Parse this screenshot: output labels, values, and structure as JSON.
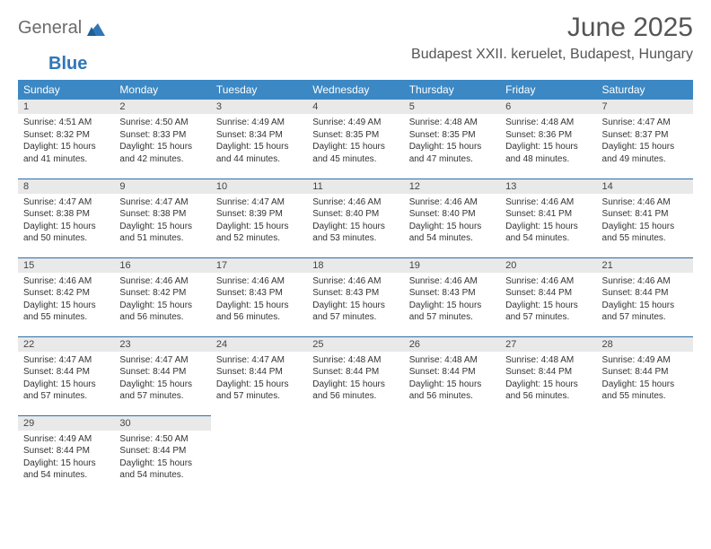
{
  "brand": {
    "general": "General",
    "blue": "Blue"
  },
  "header": {
    "month": "June 2025",
    "location": "Budapest XXII. keruelet, Budapest, Hungary"
  },
  "colors": {
    "header_bg": "#3b88c4",
    "header_text": "#ffffff",
    "daynum_bg": "#e9e9e9",
    "row_border": "#2f6fa8",
    "text": "#333333",
    "title": "#555555"
  },
  "weekdays": [
    "Sunday",
    "Monday",
    "Tuesday",
    "Wednesday",
    "Thursday",
    "Friday",
    "Saturday"
  ],
  "days": [
    {
      "n": 1,
      "sunrise": "4:51 AM",
      "sunset": "8:32 PM",
      "dh": 15,
      "dm": 41
    },
    {
      "n": 2,
      "sunrise": "4:50 AM",
      "sunset": "8:33 PM",
      "dh": 15,
      "dm": 42
    },
    {
      "n": 3,
      "sunrise": "4:49 AM",
      "sunset": "8:34 PM",
      "dh": 15,
      "dm": 44
    },
    {
      "n": 4,
      "sunrise": "4:49 AM",
      "sunset": "8:35 PM",
      "dh": 15,
      "dm": 45
    },
    {
      "n": 5,
      "sunrise": "4:48 AM",
      "sunset": "8:35 PM",
      "dh": 15,
      "dm": 47
    },
    {
      "n": 6,
      "sunrise": "4:48 AM",
      "sunset": "8:36 PM",
      "dh": 15,
      "dm": 48
    },
    {
      "n": 7,
      "sunrise": "4:47 AM",
      "sunset": "8:37 PM",
      "dh": 15,
      "dm": 49
    },
    {
      "n": 8,
      "sunrise": "4:47 AM",
      "sunset": "8:38 PM",
      "dh": 15,
      "dm": 50
    },
    {
      "n": 9,
      "sunrise": "4:47 AM",
      "sunset": "8:38 PM",
      "dh": 15,
      "dm": 51
    },
    {
      "n": 10,
      "sunrise": "4:47 AM",
      "sunset": "8:39 PM",
      "dh": 15,
      "dm": 52
    },
    {
      "n": 11,
      "sunrise": "4:46 AM",
      "sunset": "8:40 PM",
      "dh": 15,
      "dm": 53
    },
    {
      "n": 12,
      "sunrise": "4:46 AM",
      "sunset": "8:40 PM",
      "dh": 15,
      "dm": 54
    },
    {
      "n": 13,
      "sunrise": "4:46 AM",
      "sunset": "8:41 PM",
      "dh": 15,
      "dm": 54
    },
    {
      "n": 14,
      "sunrise": "4:46 AM",
      "sunset": "8:41 PM",
      "dh": 15,
      "dm": 55
    },
    {
      "n": 15,
      "sunrise": "4:46 AM",
      "sunset": "8:42 PM",
      "dh": 15,
      "dm": 55
    },
    {
      "n": 16,
      "sunrise": "4:46 AM",
      "sunset": "8:42 PM",
      "dh": 15,
      "dm": 56
    },
    {
      "n": 17,
      "sunrise": "4:46 AM",
      "sunset": "8:43 PM",
      "dh": 15,
      "dm": 56
    },
    {
      "n": 18,
      "sunrise": "4:46 AM",
      "sunset": "8:43 PM",
      "dh": 15,
      "dm": 57
    },
    {
      "n": 19,
      "sunrise": "4:46 AM",
      "sunset": "8:43 PM",
      "dh": 15,
      "dm": 57
    },
    {
      "n": 20,
      "sunrise": "4:46 AM",
      "sunset": "8:44 PM",
      "dh": 15,
      "dm": 57
    },
    {
      "n": 21,
      "sunrise": "4:46 AM",
      "sunset": "8:44 PM",
      "dh": 15,
      "dm": 57
    },
    {
      "n": 22,
      "sunrise": "4:47 AM",
      "sunset": "8:44 PM",
      "dh": 15,
      "dm": 57
    },
    {
      "n": 23,
      "sunrise": "4:47 AM",
      "sunset": "8:44 PM",
      "dh": 15,
      "dm": 57
    },
    {
      "n": 24,
      "sunrise": "4:47 AM",
      "sunset": "8:44 PM",
      "dh": 15,
      "dm": 57
    },
    {
      "n": 25,
      "sunrise": "4:48 AM",
      "sunset": "8:44 PM",
      "dh": 15,
      "dm": 56
    },
    {
      "n": 26,
      "sunrise": "4:48 AM",
      "sunset": "8:44 PM",
      "dh": 15,
      "dm": 56
    },
    {
      "n": 27,
      "sunrise": "4:48 AM",
      "sunset": "8:44 PM",
      "dh": 15,
      "dm": 56
    },
    {
      "n": 28,
      "sunrise": "4:49 AM",
      "sunset": "8:44 PM",
      "dh": 15,
      "dm": 55
    },
    {
      "n": 29,
      "sunrise": "4:49 AM",
      "sunset": "8:44 PM",
      "dh": 15,
      "dm": 54
    },
    {
      "n": 30,
      "sunrise": "4:50 AM",
      "sunset": "8:44 PM",
      "dh": 15,
      "dm": 54
    }
  ],
  "labels": {
    "sunrise": "Sunrise:",
    "sunset": "Sunset:",
    "daylight": "Daylight:",
    "hours": "hours",
    "and": "and",
    "minutes": "minutes."
  }
}
